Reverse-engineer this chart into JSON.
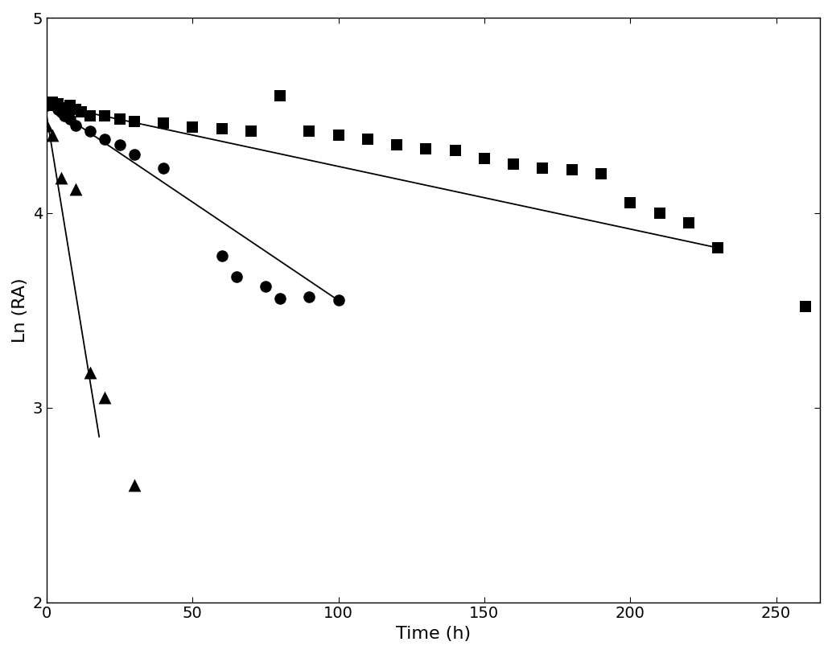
{
  "squares_x": [
    0,
    2,
    4,
    6,
    8,
    10,
    12,
    15,
    20,
    25,
    30,
    40,
    50,
    60,
    70,
    80,
    90,
    100,
    110,
    120,
    130,
    140,
    150,
    160,
    170,
    180,
    190,
    200,
    210,
    220,
    230,
    260
  ],
  "squares_y": [
    4.55,
    4.57,
    4.56,
    4.54,
    4.55,
    4.53,
    4.52,
    4.5,
    4.5,
    4.48,
    4.47,
    4.46,
    4.44,
    4.43,
    4.42,
    4.6,
    4.42,
    4.4,
    4.38,
    4.35,
    4.33,
    4.32,
    4.28,
    4.25,
    4.23,
    4.22,
    4.2,
    4.05,
    4.0,
    3.95,
    3.82,
    3.52
  ],
  "circles_x": [
    0,
    1,
    2,
    3,
    4,
    5,
    6,
    8,
    10,
    15,
    20,
    25,
    30,
    40,
    60,
    65,
    75,
    80,
    90,
    100
  ],
  "circles_y": [
    4.55,
    4.57,
    4.56,
    4.55,
    4.53,
    4.52,
    4.5,
    4.48,
    4.45,
    4.42,
    4.38,
    4.35,
    4.3,
    4.23,
    3.78,
    3.67,
    3.62,
    3.56,
    3.57,
    3.55
  ],
  "triangles_x": [
    0,
    2,
    5,
    10,
    15,
    20,
    30
  ],
  "triangles_y": [
    4.45,
    4.4,
    4.18,
    4.12,
    3.18,
    3.05,
    2.6
  ],
  "sq_line_x0": 0,
  "sq_line_x1": 230,
  "sq_line_y0": 4.56,
  "sq_line_y1": 3.82,
  "ci_line_x0": 0,
  "ci_line_x1": 100,
  "ci_line_y0": 4.56,
  "ci_line_y1": 3.55,
  "tr_line_x0": 0,
  "tr_line_x1": 18,
  "tr_line_y0": 4.5,
  "tr_line_y1": 2.85,
  "xlabel": "Time (h)",
  "ylabel": "Ln (RA)",
  "xlim": [
    0,
    265
  ],
  "ylim": [
    2,
    5
  ],
  "yticks": [
    2,
    3,
    4,
    5
  ],
  "xticks": [
    0,
    50,
    100,
    150,
    200,
    250
  ],
  "marker_color": "black",
  "line_color": "black",
  "bg_color": "white",
  "figsize": [
    10.34,
    8.13
  ],
  "dpi": 100
}
